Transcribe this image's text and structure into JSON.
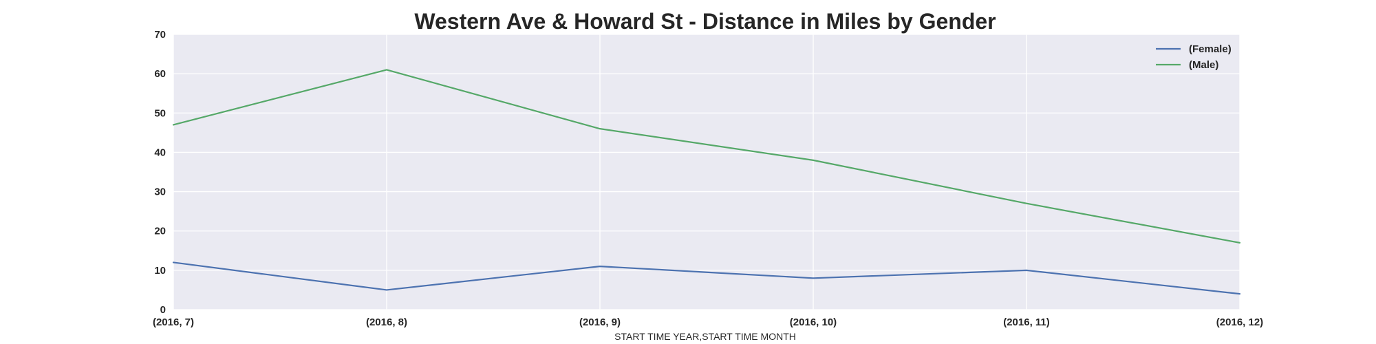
{
  "chart_data": {
    "type": "line",
    "title": "Western Ave & Howard St - Distance in Miles by Gender",
    "xlabel": "START TIME YEAR,START TIME MONTH",
    "ylabel": "",
    "categories": [
      "(2016, 7)",
      "(2016, 8)",
      "(2016, 9)",
      "(2016, 10)",
      "(2016, 11)",
      "(2016, 12)"
    ],
    "ylim": [
      0,
      70
    ],
    "yticks": [
      0,
      10,
      20,
      30,
      40,
      50,
      60,
      70
    ],
    "grid": true,
    "legend_position": "top-right",
    "series": [
      {
        "name": "(Female)",
        "color": "#4c72b0",
        "values": [
          12,
          5,
          11,
          8,
          10,
          4
        ]
      },
      {
        "name": "(Male)",
        "color": "#55a868",
        "values": [
          47,
          61,
          46,
          38,
          27,
          17
        ]
      }
    ],
    "colors": {
      "plot_background": "#eaeaf2",
      "grid": "#ffffff"
    }
  }
}
